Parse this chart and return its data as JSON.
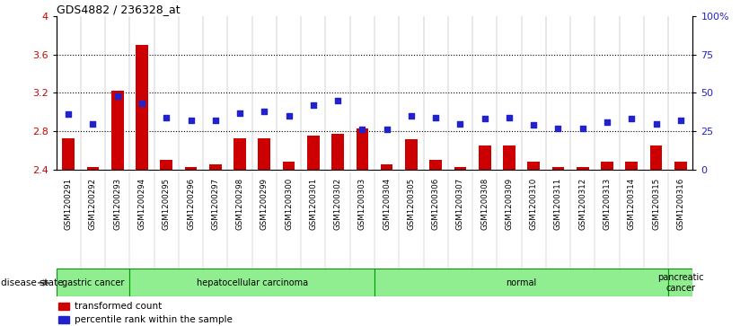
{
  "title": "GDS4882 / 236328_at",
  "samples": [
    "GSM1200291",
    "GSM1200292",
    "GSM1200293",
    "GSM1200294",
    "GSM1200295",
    "GSM1200296",
    "GSM1200297",
    "GSM1200298",
    "GSM1200299",
    "GSM1200300",
    "GSM1200301",
    "GSM1200302",
    "GSM1200303",
    "GSM1200304",
    "GSM1200305",
    "GSM1200306",
    "GSM1200307",
    "GSM1200308",
    "GSM1200309",
    "GSM1200310",
    "GSM1200311",
    "GSM1200312",
    "GSM1200313",
    "GSM1200314",
    "GSM1200315",
    "GSM1200316"
  ],
  "transformed_count": [
    2.73,
    2.43,
    3.22,
    3.7,
    2.5,
    2.43,
    2.45,
    2.73,
    2.73,
    2.48,
    2.75,
    2.77,
    2.83,
    2.45,
    2.72,
    2.5,
    2.43,
    2.65,
    2.65,
    2.48,
    2.43,
    2.43,
    2.48,
    2.48,
    2.65,
    2.48
  ],
  "percentile_rank": [
    36,
    30,
    48,
    43,
    34,
    32,
    32,
    37,
    38,
    35,
    42,
    45,
    26,
    26,
    35,
    34,
    30,
    33,
    34,
    29,
    27,
    27,
    31,
    33,
    30,
    32
  ],
  "ylim_left": [
    2.4,
    4.0
  ],
  "ylim_right": [
    0,
    100
  ],
  "yticks_left": [
    2.4,
    2.8,
    3.2,
    3.6,
    4.0
  ],
  "ytick_labels_left": [
    "2.4",
    "2.8",
    "3.2",
    "3.6",
    "4"
  ],
  "yticks_right": [
    0,
    25,
    50,
    75,
    100
  ],
  "ytick_labels_right": [
    "0",
    "25",
    "50",
    "75",
    "100%"
  ],
  "hlines": [
    2.8,
    3.2,
    3.6
  ],
  "disease_groups": [
    {
      "label": "gastric cancer",
      "start": 0,
      "end": 3
    },
    {
      "label": "hepatocellular carcinoma",
      "start": 3,
      "end": 13
    },
    {
      "label": "normal",
      "start": 13,
      "end": 25
    },
    {
      "label": "pancreatic\ncancer",
      "start": 25,
      "end": 26
    }
  ],
  "group_color": "#90ee90",
  "group_border_color": "#009900",
  "bar_color": "#cc0000",
  "dot_color": "#2222cc",
  "bar_width": 0.5,
  "tick_bg_color": "#cccccc",
  "plot_bg_color": "#ffffff",
  "legend_labels": [
    "transformed count",
    "percentile rank within the sample"
  ],
  "disease_state_label": "disease state"
}
